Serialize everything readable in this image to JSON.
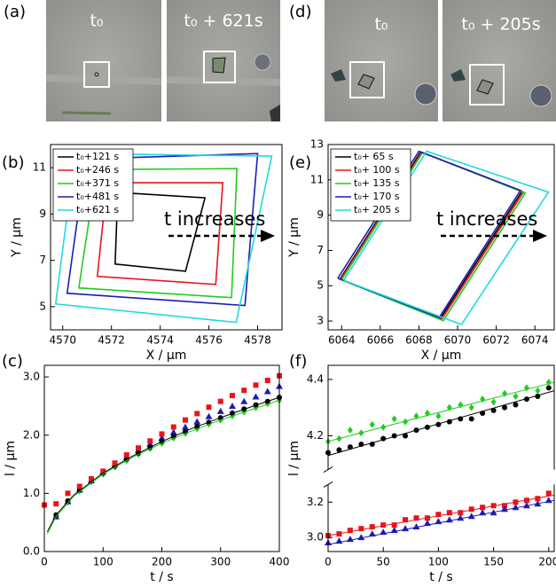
{
  "images": [
    {
      "panel_label": "(a)",
      "frames": [
        "t₀",
        "t₀ + 621s"
      ]
    },
    {
      "panel_label": "(d)",
      "frames": [
        "t₀",
        "t₀ + 205s"
      ]
    }
  ],
  "chart_data": [
    {
      "type": "line",
      "panel_label": "(b)",
      "xlabel": "X / µm",
      "ylabel": "Y / µm",
      "xlim": [
        4569.5,
        4579
      ],
      "ylim": [
        4,
        12
      ],
      "xticks": [
        4570,
        4572,
        4574,
        4576,
        4578
      ],
      "yticks": [
        5,
        7,
        9,
        11
      ],
      "legend": "upper left",
      "annotation": "t increases",
      "series": [
        {
          "name": "t₀+121 s",
          "color": "#000000",
          "x": [
            4572.26,
            4575.84,
            4575.04,
            4572.15,
            4572.26
          ],
          "values": [
            9.93,
            9.7,
            6.53,
            6.84,
            9.93
          ]
        },
        {
          "name": "t₀+246 s",
          "color": "#e8141c",
          "x": [
            4571.82,
            4576.57,
            4576.28,
            4571.42,
            4571.82
          ],
          "values": [
            10.35,
            10.35,
            5.96,
            6.31,
            10.35
          ]
        },
        {
          "name": "t₀+371 s",
          "color": "#22cc22",
          "x": [
            4571.39,
            4577.15,
            4576.93,
            4570.66,
            4571.39
          ],
          "values": [
            10.92,
            10.96,
            5.39,
            5.81,
            10.92
          ]
        },
        {
          "name": "t₀+481 s",
          "color": "#1c1cb4",
          "x": [
            4570.95,
            4578.0,
            4577.48,
            4570.18,
            4570.95
          ],
          "values": [
            11.38,
            11.61,
            5.05,
            5.58,
            11.38
          ]
        },
        {
          "name": "t₀+621 s",
          "color": "#22d8e0",
          "x": [
            4570.51,
            4578.58,
            4577.12,
            4569.71,
            4570.51
          ],
          "values": [
            11.61,
            11.5,
            4.32,
            5.12,
            11.61
          ]
        }
      ]
    },
    {
      "type": "line",
      "panel_label": "(e)",
      "xlabel": "X / µm",
      "ylabel": "Y / µm",
      "xlim": [
        6063.3,
        6075
      ],
      "ylim": [
        2.5,
        13
      ],
      "xticks": [
        6064,
        6066,
        6068,
        6070,
        6072,
        6074
      ],
      "yticks": [
        3,
        5,
        7,
        9,
        11,
        13
      ],
      "legend": "upper left",
      "annotation": "t increases",
      "series": [
        {
          "name": "t₀+ 65 s",
          "color": "#000000",
          "x": [
            6063.92,
            6068.09,
            6073.33,
            6069.12,
            6063.92
          ],
          "values": [
            5.38,
            12.58,
            10.35,
            3.16,
            5.38
          ]
        },
        {
          "name": "t₀+ 100 s",
          "color": "#e8141c",
          "x": [
            6063.95,
            6068.14,
            6073.4,
            6069.18,
            6063.95
          ],
          "values": [
            5.36,
            12.56,
            10.3,
            3.1,
            5.36
          ]
        },
        {
          "name": "t₀+ 135 s",
          "color": "#22cc22",
          "x": [
            6064.0,
            6068.2,
            6073.5,
            6069.26,
            6064.0
          ],
          "values": [
            5.33,
            12.55,
            10.25,
            3.02,
            5.33
          ]
        },
        {
          "name": "t₀+ 170 s",
          "color": "#1c1cb4",
          "x": [
            6063.8,
            6068.0,
            6073.25,
            6069.05,
            6063.8
          ],
          "values": [
            5.42,
            12.62,
            10.4,
            3.2,
            5.42
          ]
        },
        {
          "name": "t₀+ 205 s",
          "color": "#22d8e0",
          "x": [
            6064.1,
            6068.4,
            6074.7,
            6070.2,
            6064.1
          ],
          "values": [
            5.3,
            12.62,
            10.3,
            2.8,
            5.3
          ]
        }
      ]
    },
    {
      "type": "scatter",
      "panel_label": "(c)",
      "xlabel": "t / s",
      "ylabel": "l / µm",
      "xlim": [
        0,
        400
      ],
      "ylim": [
        0,
        3.2
      ],
      "xticks": [
        0,
        100,
        200,
        300,
        400
      ],
      "yticks": [
        {
          "value": 0,
          "label": "0.0"
        },
        {
          "value": 1,
          "label": "1.0"
        },
        {
          "value": 2,
          "label": "2.0"
        },
        {
          "value": 3,
          "label": "3.0"
        }
      ],
      "series": [
        {
          "color": "#22cc22",
          "marker": "diamond",
          "x": [
            20,
            40,
            60,
            80,
            100,
            120,
            140,
            160,
            180,
            200,
            220,
            240,
            260,
            280,
            300,
            320,
            340,
            360,
            380,
            400
          ],
          "values": [
            0.6,
            0.85,
            1.04,
            1.2,
            1.33,
            1.45,
            1.56,
            1.67,
            1.77,
            1.86,
            1.95,
            2.03,
            2.11,
            2.19,
            2.26,
            2.33,
            2.4,
            2.47,
            2.54,
            2.6
          ]
        },
        {
          "color": "#1c1cb4",
          "marker": "triangle",
          "x": [
            20,
            40,
            60,
            80,
            100,
            120,
            140,
            160,
            180,
            200,
            220,
            240,
            260,
            280,
            300,
            320,
            340,
            360,
            380,
            400
          ],
          "values": [
            0.6,
            0.86,
            1.06,
            1.22,
            1.37,
            1.5,
            1.62,
            1.74,
            1.85,
            1.95,
            2.05,
            2.14,
            2.23,
            2.32,
            2.41,
            2.5,
            2.58,
            2.66,
            2.75,
            2.84
          ]
        },
        {
          "color": "#000000",
          "marker": "circle",
          "x": [
            20,
            40,
            60,
            80,
            100,
            120,
            140,
            160,
            180,
            200,
            220,
            240,
            260,
            280,
            300,
            320,
            340,
            360,
            380,
            400
          ],
          "values": [
            0.63,
            0.87,
            1.06,
            1.21,
            1.35,
            1.47,
            1.59,
            1.69,
            1.79,
            1.89,
            1.98,
            2.06,
            2.15,
            2.22,
            2.3,
            2.38,
            2.45,
            2.52,
            2.58,
            2.65
          ]
        },
        {
          "color": "#e8141c",
          "marker": "square",
          "x": [
            0,
            20,
            40,
            60,
            80,
            100,
            120,
            140,
            160,
            180,
            200,
            220,
            240,
            260,
            280,
            300,
            320,
            340,
            360,
            380,
            400
          ],
          "values": [
            0.8,
            0.82,
            1.0,
            1.12,
            1.25,
            1.38,
            1.52,
            1.66,
            1.78,
            1.9,
            2.02,
            2.14,
            2.26,
            2.37,
            2.48,
            2.58,
            2.68,
            2.77,
            2.86,
            2.94,
            3.02
          ]
        },
        {
          "color": "#000000",
          "x": [
            5,
            20,
            50,
            100,
            150,
            200,
            250,
            300,
            350,
            400
          ],
          "values": [
            0.34,
            0.63,
            0.97,
            1.35,
            1.64,
            1.89,
            2.11,
            2.3,
            2.48,
            2.65
          ]
        },
        {
          "color": "#22cc22",
          "x": [
            5,
            20,
            50,
            100,
            150,
            200,
            250,
            300,
            350,
            400
          ],
          "values": [
            0.3,
            0.6,
            0.95,
            1.33,
            1.62,
            1.86,
            2.07,
            2.26,
            2.43,
            2.6
          ]
        }
      ]
    },
    {
      "type": "scatter",
      "panel_label": "(f)",
      "xlabel": "t / s",
      "ylabel": "l / µm",
      "xlim": [
        0,
        205
      ],
      "ylim": [
        2.92,
        4.45
      ],
      "ybreak": [
        3.3,
        4.08
      ],
      "xticks": [
        0,
        50,
        100,
        150,
        200
      ],
      "yticks": [
        {
          "value": 3,
          "label": "3.0"
        },
        3.2,
        4.2,
        4.4
      ],
      "series": [
        {
          "color": "#22cc22",
          "marker": "diamond",
          "x": [
            0,
            10,
            20,
            30,
            40,
            50,
            60,
            70,
            80,
            90,
            100,
            110,
            120,
            130,
            140,
            150,
            160,
            170,
            180,
            190,
            200
          ],
          "values": [
            4.18,
            4.19,
            4.22,
            4.21,
            4.24,
            4.23,
            4.26,
            4.25,
            4.27,
            4.28,
            4.27,
            4.3,
            4.31,
            4.3,
            4.33,
            4.32,
            4.35,
            4.34,
            4.37,
            4.36,
            4.39
          ]
        },
        {
          "color": "#000000",
          "marker": "circle",
          "x": [
            0,
            10,
            20,
            30,
            40,
            50,
            60,
            70,
            80,
            90,
            100,
            110,
            120,
            130,
            140,
            150,
            160,
            170,
            180,
            190,
            200
          ],
          "values": [
            4.14,
            4.15,
            4.16,
            4.17,
            4.17,
            4.19,
            4.2,
            4.2,
            4.22,
            4.23,
            4.24,
            4.25,
            4.26,
            4.26,
            4.28,
            4.29,
            4.3,
            4.31,
            4.33,
            4.34,
            4.37
          ]
        },
        {
          "color": "#e8141c",
          "marker": "square",
          "x": [
            0,
            10,
            20,
            30,
            40,
            50,
            60,
            70,
            80,
            90,
            100,
            110,
            120,
            130,
            140,
            150,
            160,
            170,
            180,
            190,
            200
          ],
          "values": [
            3.01,
            3.02,
            3.04,
            3.05,
            3.06,
            3.07,
            3.07,
            3.1,
            3.11,
            3.11,
            3.13,
            3.14,
            3.14,
            3.16,
            3.17,
            3.18,
            3.18,
            3.2,
            3.21,
            3.22,
            3.25
          ]
        },
        {
          "color": "#1c1cb4",
          "marker": "triangle",
          "x": [
            0,
            10,
            20,
            30,
            40,
            50,
            60,
            70,
            80,
            90,
            100,
            110,
            120,
            130,
            140,
            150,
            160,
            170,
            180,
            190,
            200
          ],
          "values": [
            2.97,
            2.98,
            2.99,
            3.0,
            3.02,
            3.03,
            3.04,
            3.05,
            3.06,
            3.08,
            3.09,
            3.1,
            3.11,
            3.12,
            3.14,
            3.14,
            3.16,
            3.17,
            3.18,
            3.19,
            3.21
          ]
        },
        {
          "color": "#22cc22",
          "x": [
            0,
            205
          ],
          "values": [
            4.18,
            4.39
          ]
        },
        {
          "color": "#000000",
          "x": [
            0,
            205
          ],
          "values": [
            4.13,
            4.36
          ]
        },
        {
          "color": "#e8141c",
          "x": [
            0,
            205
          ],
          "values": [
            3.01,
            3.24
          ]
        },
        {
          "color": "#1c1cb4",
          "x": [
            0,
            205
          ],
          "values": [
            2.96,
            3.21
          ]
        }
      ]
    }
  ]
}
